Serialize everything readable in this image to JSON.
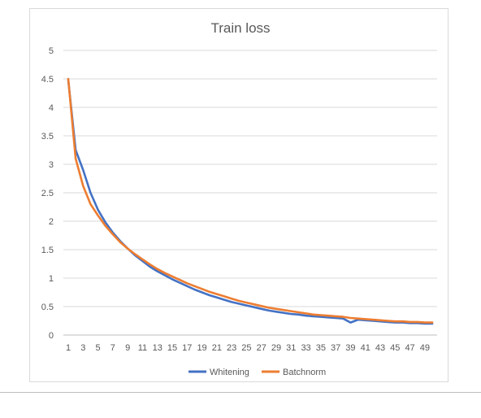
{
  "chart_data": {
    "type": "line",
    "title": "Train loss",
    "xlabel": "",
    "ylabel": "",
    "ylim": [
      0,
      5
    ],
    "yticks": [
      "0",
      "0.5",
      "1",
      "1.5",
      "2",
      "2.5",
      "3",
      "3.5",
      "4",
      "4.5",
      "5"
    ],
    "xtick_labels": [
      "1",
      "3",
      "5",
      "7",
      "9",
      "11",
      "13",
      "15",
      "17",
      "19",
      "21",
      "23",
      "25",
      "27",
      "29",
      "31",
      "33",
      "35",
      "37",
      "39",
      "41",
      "43",
      "45",
      "47",
      "49"
    ],
    "x": [
      1,
      2,
      3,
      4,
      5,
      6,
      7,
      8,
      9,
      10,
      11,
      12,
      13,
      14,
      15,
      16,
      17,
      18,
      19,
      20,
      21,
      22,
      23,
      24,
      25,
      26,
      27,
      28,
      29,
      30,
      31,
      32,
      33,
      34,
      35,
      36,
      37,
      38,
      39,
      40,
      41,
      42,
      43,
      44,
      45,
      46,
      47,
      48,
      49,
      50
    ],
    "grid": true,
    "legend_position": "bottom",
    "series": [
      {
        "name": "Whitening",
        "color": "#4472c4",
        "values": [
          4.48,
          3.25,
          2.9,
          2.5,
          2.2,
          1.98,
          1.8,
          1.65,
          1.52,
          1.4,
          1.3,
          1.2,
          1.12,
          1.05,
          0.98,
          0.92,
          0.86,
          0.8,
          0.75,
          0.7,
          0.66,
          0.62,
          0.58,
          0.55,
          0.52,
          0.49,
          0.46,
          0.43,
          0.41,
          0.39,
          0.37,
          0.36,
          0.34,
          0.33,
          0.32,
          0.31,
          0.3,
          0.29,
          0.22,
          0.27,
          0.26,
          0.25,
          0.24,
          0.23,
          0.22,
          0.22,
          0.21,
          0.21,
          0.2,
          0.2
        ]
      },
      {
        "name": "Batchnorm",
        "color": "#ed7d31",
        "values": [
          4.5,
          3.1,
          2.62,
          2.3,
          2.1,
          1.92,
          1.77,
          1.63,
          1.52,
          1.42,
          1.33,
          1.24,
          1.16,
          1.09,
          1.03,
          0.97,
          0.91,
          0.86,
          0.81,
          0.76,
          0.72,
          0.68,
          0.64,
          0.6,
          0.57,
          0.54,
          0.51,
          0.48,
          0.46,
          0.44,
          0.42,
          0.4,
          0.38,
          0.36,
          0.35,
          0.34,
          0.33,
          0.32,
          0.3,
          0.29,
          0.28,
          0.27,
          0.26,
          0.25,
          0.24,
          0.24,
          0.23,
          0.23,
          0.22,
          0.22
        ]
      }
    ]
  }
}
